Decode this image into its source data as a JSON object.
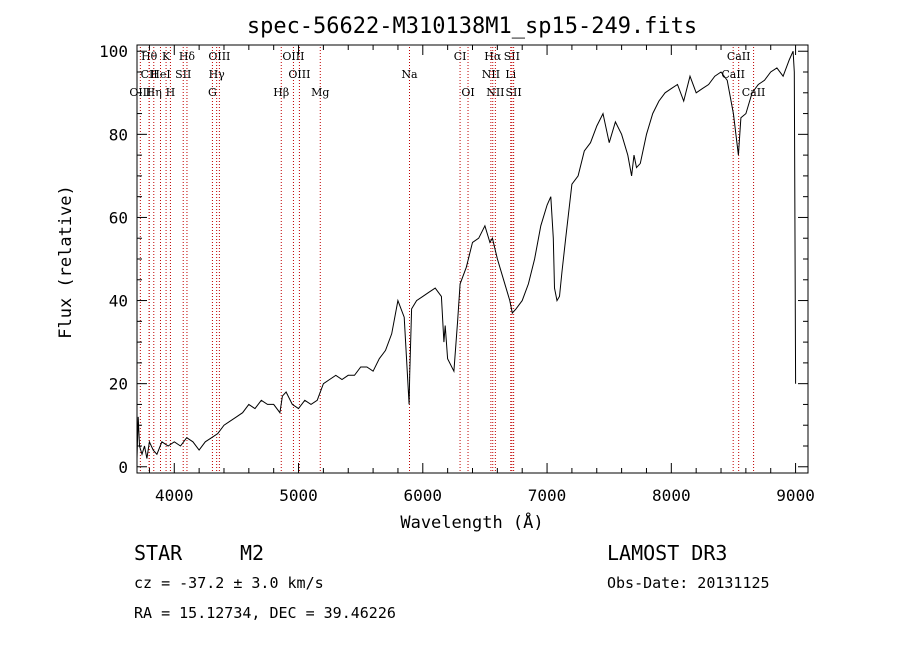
{
  "chart_data": {
    "type": "line",
    "title": "spec-56622-M310138M1_sp15-249.fits",
    "xlabel": "Wavelength (Å)",
    "ylabel": "Flux (relative)",
    "xlim": [
      3700,
      9100
    ],
    "ylim": [
      -1.5,
      101.5
    ],
    "xticks": [
      4000,
      5000,
      6000,
      7000,
      8000,
      9000
    ],
    "yticks": [
      0,
      20,
      40,
      60,
      80,
      100
    ],
    "series": [
      {
        "name": "spectrum",
        "x": [
          3700,
          3710,
          3720,
          3740,
          3760,
          3780,
          3800,
          3830,
          3860,
          3900,
          3950,
          4000,
          4050,
          4100,
          4150,
          4200,
          4250,
          4300,
          4350,
          4400,
          4450,
          4500,
          4550,
          4600,
          4650,
          4700,
          4750,
          4800,
          4850,
          4870,
          4900,
          4950,
          5000,
          5050,
          5100,
          5150,
          5200,
          5250,
          5300,
          5350,
          5400,
          5450,
          5500,
          5550,
          5600,
          5650,
          5700,
          5750,
          5800,
          5850,
          5890,
          5895,
          5910,
          5950,
          6000,
          6050,
          6100,
          6150,
          6170,
          6180,
          6200,
          6250,
          6280,
          6300,
          6350,
          6400,
          6450,
          6500,
          6520,
          6540,
          6560,
          6600,
          6650,
          6700,
          6720,
          6750,
          6800,
          6850,
          6900,
          6950,
          7000,
          7030,
          7050,
          7060,
          7080,
          7100,
          7120,
          7150,
          7200,
          7250,
          7300,
          7350,
          7400,
          7450,
          7500,
          7550,
          7600,
          7650,
          7680,
          7700,
          7720,
          7750,
          7800,
          7850,
          7900,
          7950,
          8000,
          8050,
          8100,
          8150,
          8200,
          8250,
          8300,
          8350,
          8400,
          8450,
          8500,
          8520,
          8540,
          8560,
          8600,
          8650,
          8700,
          8750,
          8800,
          8850,
          8900,
          8950,
          8980,
          8990,
          9000
        ],
        "values": [
          2,
          12,
          5,
          3,
          5,
          2,
          6,
          4,
          3,
          6,
          5,
          6,
          5,
          7,
          6,
          4,
          6,
          7,
          8,
          10,
          11,
          12,
          13,
          15,
          14,
          16,
          15,
          15,
          13,
          17,
          18,
          15,
          14,
          16,
          15,
          16,
          20,
          21,
          22,
          21,
          22,
          22,
          24,
          24,
          23,
          26,
          28,
          32,
          40,
          36,
          15,
          22,
          38,
          40,
          41,
          42,
          43,
          41,
          30,
          34,
          26,
          23,
          35,
          44,
          48,
          54,
          55,
          58,
          56,
          54,
          55,
          50,
          45,
          40,
          37,
          38,
          40,
          44,
          50,
          58,
          63,
          65,
          55,
          43,
          40,
          41,
          47,
          55,
          68,
          70,
          76,
          78,
          82,
          85,
          78,
          83,
          80,
          75,
          70,
          75,
          72,
          73,
          80,
          85,
          88,
          90,
          91,
          92,
          88,
          94,
          90,
          91,
          92,
          94,
          95,
          93,
          85,
          80,
          75,
          84,
          85,
          90,
          92,
          93,
          95,
          96,
          94,
          98,
          100,
          95,
          20
        ]
      }
    ],
    "emission_lines": [
      {
        "label": "Hθ",
        "wavelength": 3798,
        "row": 1
      },
      {
        "label": "K",
        "wavelength": 3934,
        "row": 1
      },
      {
        "label": "Hδ",
        "wavelength": 4102,
        "row": 1
      },
      {
        "label": "OIII",
        "wavelength": 4363,
        "row": 1
      },
      {
        "label": "OIII",
        "wavelength": 4959,
        "row": 1
      },
      {
        "label": "CI",
        "wavelength": 6300,
        "row": 1
      },
      {
        "label": "Hα",
        "wavelength": 6563,
        "row": 1
      },
      {
        "label": "SII",
        "wavelength": 6717,
        "row": 1
      },
      {
        "label": "CaII",
        "wavelength": 8542,
        "row": 1
      },
      {
        "label": "CII",
        "wavelength": 3798,
        "row": 2
      },
      {
        "label": "HeI",
        "wavelength": 3889,
        "row": 2
      },
      {
        "label": "SII",
        "wavelength": 4072,
        "row": 2
      },
      {
        "label": "Hγ",
        "wavelength": 4341,
        "row": 2
      },
      {
        "label": "OIII",
        "wavelength": 5007,
        "row": 2
      },
      {
        "label": "Na",
        "wavelength": 5893,
        "row": 2
      },
      {
        "label": "NII",
        "wavelength": 6548,
        "row": 2
      },
      {
        "label": "Li",
        "wavelength": 6708,
        "row": 2
      },
      {
        "label": "CaII",
        "wavelength": 8498,
        "row": 2
      },
      {
        "label": "OIII",
        "wavelength": 3727,
        "row": 3
      },
      {
        "label": "Hη",
        "wavelength": 3835,
        "row": 3
      },
      {
        "label": "H",
        "wavelength": 3969,
        "row": 3
      },
      {
        "label": "G",
        "wavelength": 4307,
        "row": 3
      },
      {
        "label": "Hβ",
        "wavelength": 4861,
        "row": 3
      },
      {
        "label": "Mg",
        "wavelength": 5175,
        "row": 3
      },
      {
        "label": "OI",
        "wavelength": 6364,
        "row": 3
      },
      {
        "label": "NII",
        "wavelength": 6584,
        "row": 3
      },
      {
        "label": "SII",
        "wavelength": 6731,
        "row": 3
      },
      {
        "label": "CaII",
        "wavelength": 8662,
        "row": 3
      }
    ]
  },
  "info": {
    "object_class": "STAR",
    "subclass": "M2",
    "survey": "LAMOST DR3",
    "redshift": "cz = -37.2 ± 3.0 km/s",
    "obs_date": "Obs-Date: 20131125",
    "coords": "RA =  15.12734, DEC =  39.46226"
  }
}
